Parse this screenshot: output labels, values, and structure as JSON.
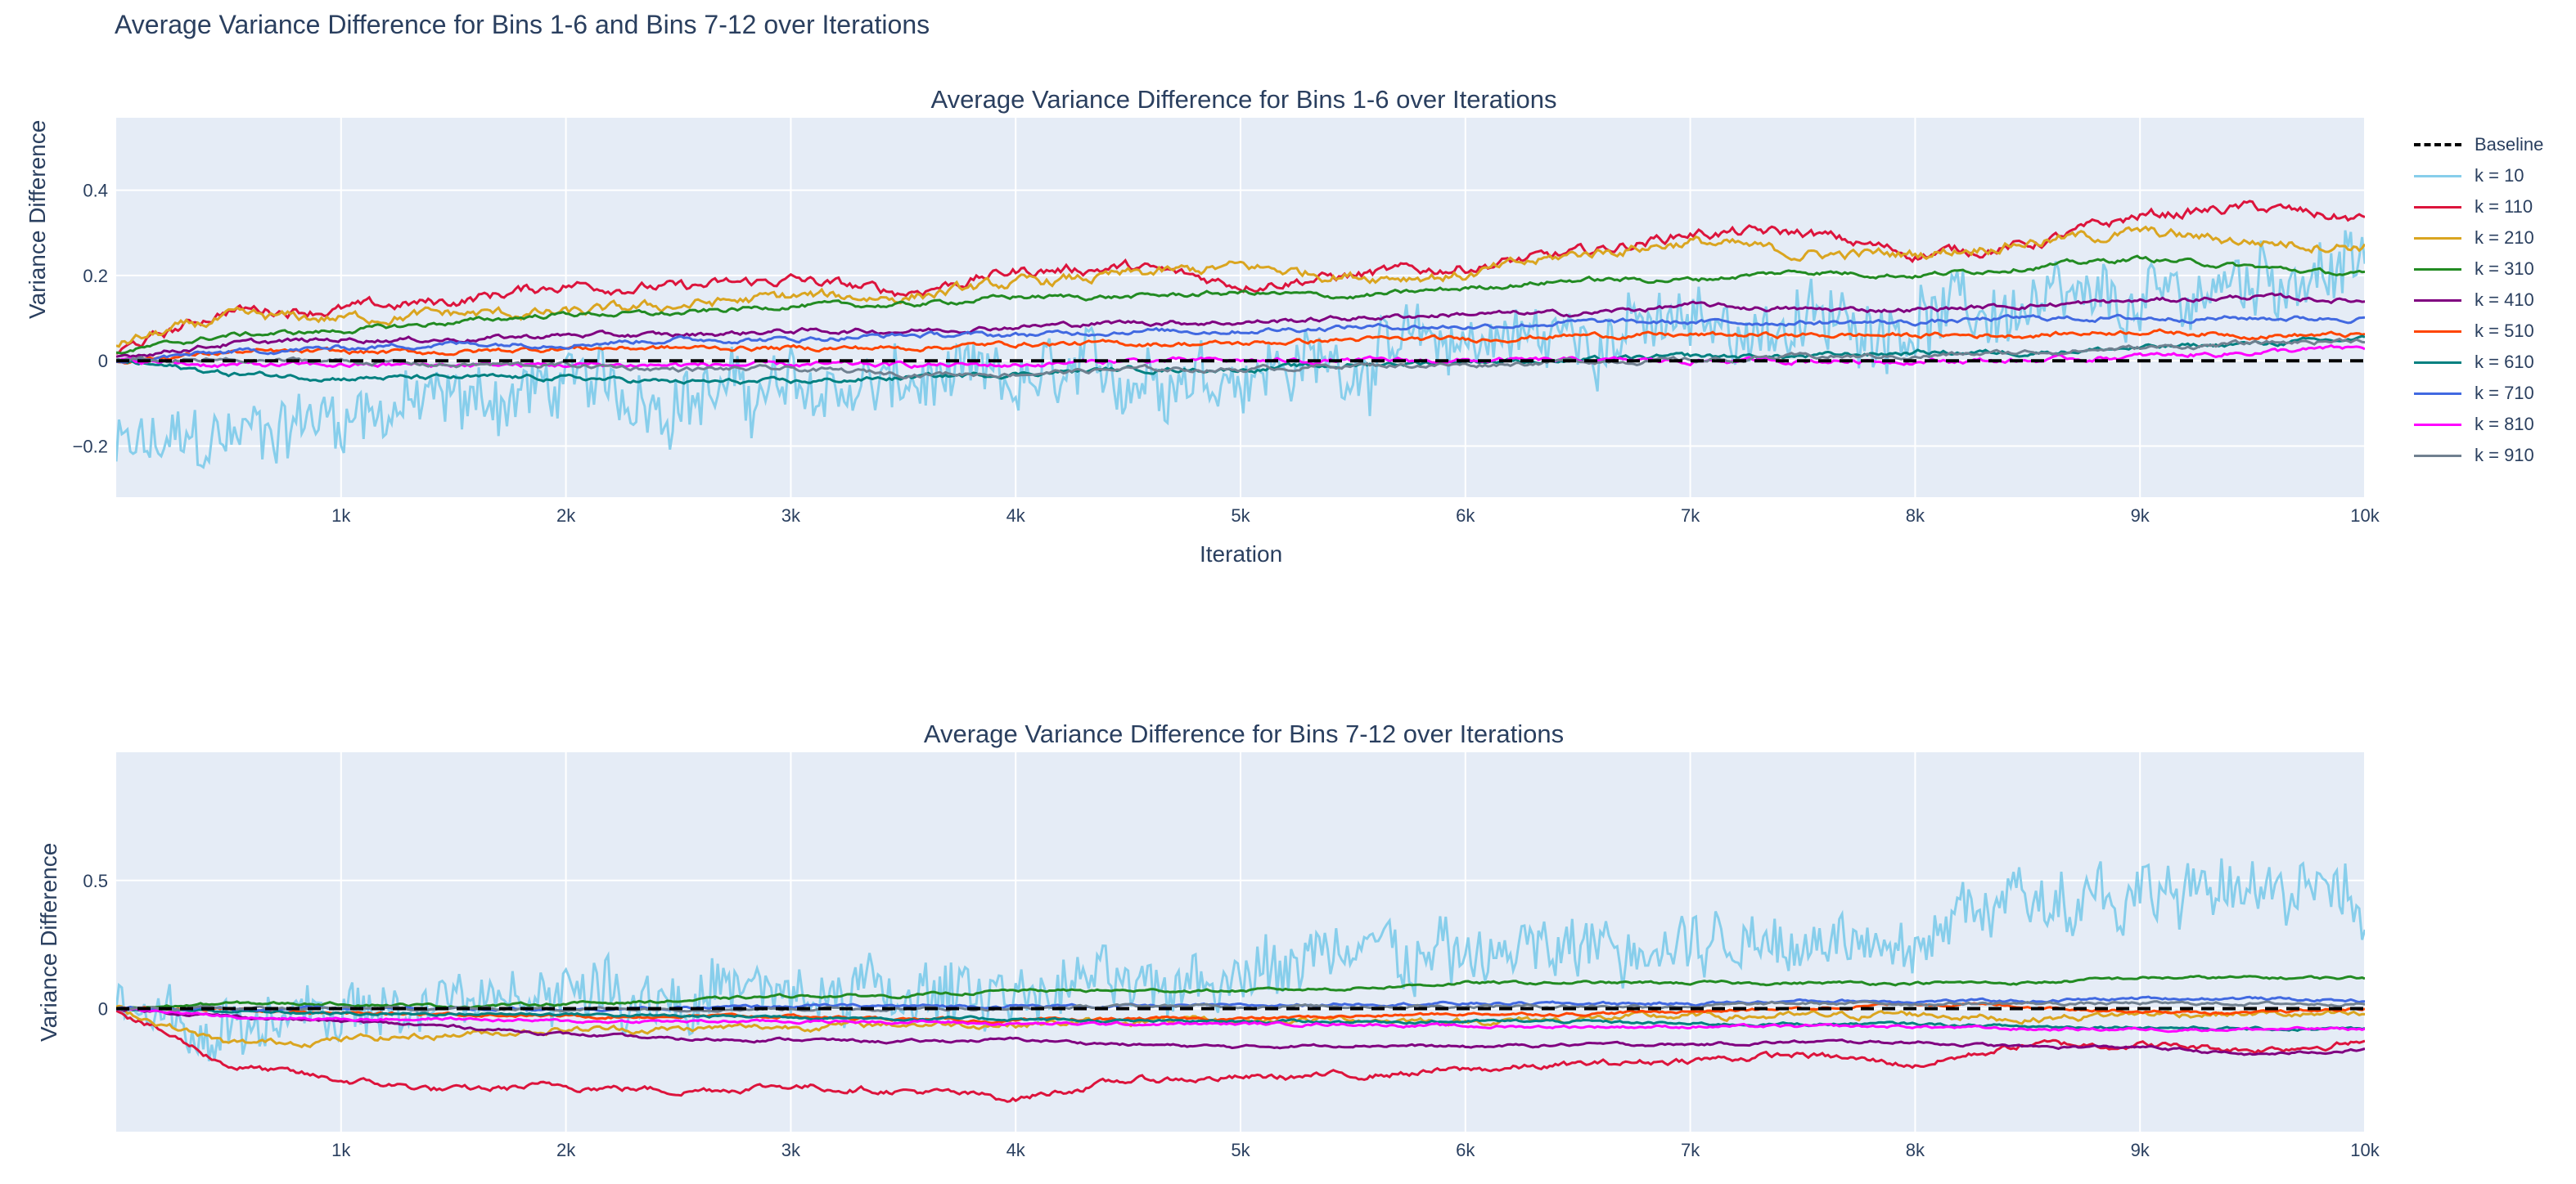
{
  "figure_title": "Average Variance Difference for Bins 1-6 and Bins 7-12 over Iterations",
  "colors": {
    "plot_bg": "#E5ECF6",
    "grid": "#FFFFFF",
    "text": "#2a3f5f",
    "baseline": "#000000"
  },
  "legend": [
    {
      "name": "Baseline",
      "color": "#000000",
      "dash": true
    },
    {
      "name": "k = 10",
      "color": "#87CEEB"
    },
    {
      "name": "k = 110",
      "color": "#DC143C"
    },
    {
      "name": "k = 210",
      "color": "#DAA520"
    },
    {
      "name": "k = 310",
      "color": "#228B22"
    },
    {
      "name": "k = 410",
      "color": "#800080"
    },
    {
      "name": "k = 510",
      "color": "#FF4500"
    },
    {
      "name": "k = 610",
      "color": "#008080"
    },
    {
      "name": "k = 710",
      "color": "#4169E1"
    },
    {
      "name": "k = 810",
      "color": "#FF00FF"
    },
    {
      "name": "k = 910",
      "color": "#708090"
    }
  ],
  "chart_data": [
    {
      "type": "line",
      "title": "Average Variance Difference for Bins 1-6 over Iterations",
      "xlabel": "Iteration",
      "ylabel": "Variance Difference",
      "xlim": [
        0,
        10000
      ],
      "ylim": [
        -0.32,
        0.57
      ],
      "x_ticks": [
        1000,
        2000,
        3000,
        4000,
        5000,
        6000,
        7000,
        8000,
        9000,
        10000
      ],
      "x_tick_labels": [
        "1k",
        "2k",
        "3k",
        "4k",
        "5k",
        "6k",
        "7k",
        "8k",
        "9k",
        "10k"
      ],
      "y_ticks": [
        -0.2,
        0,
        0.2,
        0.4
      ],
      "y_tick_labels": [
        "−0.2",
        "0",
        "0.2",
        "0.4"
      ],
      "grid": true,
      "legend_position": "right",
      "x": [
        0,
        500,
        1000,
        1500,
        2000,
        2500,
        3000,
        3500,
        4000,
        4500,
        5000,
        5500,
        6000,
        6500,
        7000,
        7500,
        8000,
        8500,
        9000,
        9500,
        10000
      ],
      "series": [
        {
          "name": "Baseline",
          "values": [
            0,
            0,
            0,
            0,
            0,
            0,
            0,
            0,
            0,
            0,
            0,
            0,
            0,
            0,
            0,
            0,
            0,
            0,
            0,
            0,
            0
          ]
        },
        {
          "name": "k = 10",
          "values": [
            -0.22,
            -0.18,
            -0.12,
            -0.1,
            -0.06,
            -0.08,
            -0.07,
            -0.06,
            -0.06,
            -0.03,
            -0.02,
            0.0,
            0.05,
            0.06,
            0.08,
            0.08,
            0.1,
            0.12,
            0.12,
            0.2,
            0.22
          ]
        },
        {
          "name": "k = 110",
          "values": [
            0.02,
            0.12,
            0.12,
            0.14,
            0.18,
            0.17,
            0.19,
            0.16,
            0.21,
            0.22,
            0.18,
            0.2,
            0.22,
            0.25,
            0.3,
            0.3,
            0.25,
            0.27,
            0.34,
            0.36,
            0.33
          ]
        },
        {
          "name": "k = 210",
          "values": [
            0.04,
            0.1,
            0.1,
            0.11,
            0.11,
            0.13,
            0.15,
            0.15,
            0.18,
            0.2,
            0.22,
            0.2,
            0.2,
            0.25,
            0.28,
            0.25,
            0.25,
            0.28,
            0.3,
            0.28,
            0.27
          ]
        },
        {
          "name": "k = 310",
          "values": [
            0.02,
            0.06,
            0.07,
            0.09,
            0.11,
            0.11,
            0.13,
            0.13,
            0.15,
            0.15,
            0.16,
            0.15,
            0.17,
            0.19,
            0.19,
            0.21,
            0.2,
            0.22,
            0.24,
            0.22,
            0.2
          ]
        },
        {
          "name": "k = 410",
          "values": [
            0.01,
            0.04,
            0.05,
            0.05,
            0.06,
            0.06,
            0.07,
            0.07,
            0.08,
            0.09,
            0.09,
            0.1,
            0.11,
            0.11,
            0.13,
            0.12,
            0.12,
            0.13,
            0.14,
            0.15,
            0.14
          ]
        },
        {
          "name": "k = 510",
          "values": [
            0.0,
            0.02,
            0.02,
            0.02,
            0.03,
            0.03,
            0.03,
            0.03,
            0.04,
            0.04,
            0.04,
            0.05,
            0.05,
            0.06,
            0.06,
            0.06,
            0.06,
            0.06,
            0.07,
            0.06,
            0.06
          ]
        },
        {
          "name": "k = 610",
          "values": [
            0.0,
            -0.03,
            -0.04,
            -0.04,
            -0.04,
            -0.05,
            -0.05,
            -0.04,
            -0.03,
            -0.02,
            -0.02,
            -0.01,
            0.0,
            0.0,
            0.01,
            0.01,
            0.02,
            0.02,
            0.03,
            0.04,
            0.05
          ]
        },
        {
          "name": "k = 710",
          "values": [
            0.0,
            0.02,
            0.03,
            0.04,
            0.04,
            0.05,
            0.05,
            0.06,
            0.06,
            0.07,
            0.07,
            0.08,
            0.08,
            0.09,
            0.09,
            0.09,
            0.09,
            0.1,
            0.1,
            0.1,
            0.1
          ]
        },
        {
          "name": "k = 810",
          "values": [
            0.0,
            -0.01,
            -0.01,
            -0.01,
            -0.01,
            -0.01,
            -0.01,
            -0.01,
            -0.01,
            0.0,
            0.0,
            0.0,
            0.0,
            0.0,
            0.0,
            0.0,
            0.0,
            0.0,
            0.01,
            0.02,
            0.03
          ]
        },
        {
          "name": "k = 910",
          "values": [
            0.0,
            0.0,
            0.0,
            -0.01,
            -0.01,
            -0.02,
            -0.02,
            -0.03,
            -0.03,
            -0.02,
            -0.02,
            -0.01,
            -0.01,
            0.0,
            0.0,
            0.01,
            0.01,
            0.02,
            0.03,
            0.04,
            0.05
          ]
        }
      ]
    },
    {
      "type": "line",
      "title": "Average Variance Difference for Bins 7-12 over Iterations",
      "xlabel": "",
      "ylabel": "Variance Difference",
      "xlim": [
        0,
        10000
      ],
      "ylim": [
        -0.48,
        1.0
      ],
      "x_ticks": [
        1000,
        2000,
        3000,
        4000,
        5000,
        6000,
        7000,
        8000,
        9000,
        10000
      ],
      "x_tick_labels": [
        "1k",
        "2k",
        "3k",
        "4k",
        "5k",
        "6k",
        "7k",
        "8k",
        "9k",
        "10k"
      ],
      "y_ticks": [
        0,
        0.5
      ],
      "y_tick_labels": [
        "0",
        "0.5"
      ],
      "grid": true,
      "x": [
        0,
        500,
        1000,
        1500,
        2000,
        2500,
        3000,
        3500,
        4000,
        4500,
        5000,
        5500,
        6000,
        6500,
        7000,
        7500,
        8000,
        8500,
        9000,
        9500,
        10000
      ],
      "series": [
        {
          "name": "Baseline",
          "values": [
            0,
            0,
            0,
            0,
            0,
            0,
            0,
            0,
            0,
            0,
            0,
            0,
            0,
            0,
            0,
            0,
            0,
            0,
            0,
            0,
            0
          ]
        },
        {
          "name": "k = 10",
          "values": [
            -0.02,
            -0.1,
            -0.02,
            0.02,
            0.08,
            0.05,
            0.05,
            0.05,
            0.08,
            0.1,
            0.15,
            0.2,
            0.2,
            0.22,
            0.25,
            0.28,
            0.3,
            0.45,
            0.42,
            0.45,
            0.42
          ]
        },
        {
          "name": "k = 110",
          "values": [
            0.0,
            -0.22,
            -0.28,
            -0.32,
            -0.3,
            -0.32,
            -0.3,
            -0.32,
            -0.35,
            -0.28,
            -0.27,
            -0.26,
            -0.24,
            -0.22,
            -0.2,
            -0.18,
            -0.22,
            -0.14,
            -0.14,
            -0.16,
            -0.13
          ]
        },
        {
          "name": "k = 210",
          "values": [
            0.0,
            -0.14,
            -0.12,
            -0.1,
            -0.08,
            -0.08,
            -0.07,
            -0.06,
            -0.06,
            -0.05,
            -0.05,
            -0.04,
            -0.05,
            -0.04,
            -0.03,
            -0.03,
            -0.02,
            -0.04,
            -0.02,
            -0.02,
            -0.03
          ]
        },
        {
          "name": "k = 310",
          "values": [
            0.0,
            0.02,
            0.02,
            0.01,
            0.02,
            0.03,
            0.05,
            0.05,
            0.07,
            0.07,
            0.07,
            0.08,
            0.1,
            0.1,
            0.1,
            0.1,
            0.1,
            0.1,
            0.12,
            0.12,
            0.12
          ]
        },
        {
          "name": "k = 410",
          "values": [
            0.0,
            -0.03,
            -0.05,
            -0.07,
            -0.1,
            -0.12,
            -0.12,
            -0.13,
            -0.12,
            -0.14,
            -0.15,
            -0.14,
            -0.15,
            -0.14,
            -0.14,
            -0.13,
            -0.13,
            -0.15,
            -0.15,
            -0.18,
            -0.16
          ]
        },
        {
          "name": "k = 510",
          "values": [
            0.0,
            0.0,
            -0.02,
            -0.02,
            -0.03,
            -0.03,
            -0.03,
            -0.04,
            -0.05,
            -0.04,
            -0.04,
            -0.03,
            -0.02,
            -0.02,
            -0.01,
            0.0,
            0.02,
            0.01,
            -0.01,
            -0.02,
            0.0
          ]
        },
        {
          "name": "k = 610",
          "values": [
            0.0,
            -0.01,
            -0.02,
            -0.02,
            -0.02,
            -0.03,
            -0.03,
            -0.04,
            -0.04,
            -0.05,
            -0.05,
            -0.05,
            -0.05,
            -0.05,
            -0.06,
            -0.06,
            -0.06,
            -0.07,
            -0.07,
            -0.08,
            -0.08
          ]
        },
        {
          "name": "k = 710",
          "values": [
            0.0,
            0.0,
            0.0,
            0.0,
            0.0,
            0.0,
            0.01,
            0.01,
            0.01,
            0.01,
            0.01,
            0.02,
            0.02,
            0.02,
            0.02,
            0.03,
            0.03,
            0.03,
            0.04,
            0.04,
            0.03
          ]
        },
        {
          "name": "k = 810",
          "values": [
            0.0,
            -0.03,
            -0.04,
            -0.04,
            -0.05,
            -0.05,
            -0.05,
            -0.05,
            -0.06,
            -0.06,
            -0.06,
            -0.06,
            -0.07,
            -0.07,
            -0.07,
            -0.07,
            -0.07,
            -0.08,
            -0.08,
            -0.08,
            -0.08
          ]
        },
        {
          "name": "k = 910",
          "values": [
            0.0,
            0.0,
            0.0,
            0.0,
            0.0,
            0.0,
            0.0,
            0.0,
            0.0,
            0.01,
            0.01,
            0.01,
            0.01,
            0.01,
            0.01,
            0.02,
            0.02,
            0.02,
            0.02,
            0.02,
            0.02
          ]
        }
      ]
    }
  ]
}
